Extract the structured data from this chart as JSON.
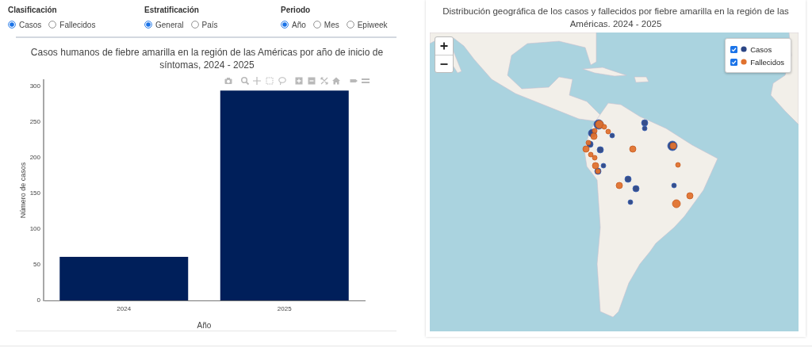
{
  "chart_data": [
    {
      "type": "other",
      "title": "Clasificación",
      "categories": [
        "Casos",
        "Fallecidos"
      ]
    },
    {
      "type": "other",
      "title": "Estratificación",
      "categories": [
        "General",
        "País"
      ]
    },
    {
      "type": "other",
      "title": "Periodo",
      "categories": [
        "Año",
        "Mes",
        "Epiweek"
      ]
    },
    {
      "type": "bar",
      "title": "Casos humanos de fiebre amarilla en la región de las Américas por año de inicio de síntomas, 2024 - 2025",
      "categories": [
        "2024",
        "2025"
      ],
      "values": [
        61,
        294
      ],
      "color": "#001f5a",
      "xlabel": "Año",
      "ylabel": "Número de casos",
      "ylim": [
        0,
        309
      ],
      "yticks": [
        0,
        50,
        100,
        150,
        200,
        250,
        300
      ]
    },
    {
      "type": "other",
      "title": "Distribución geográfica de los casos y fallecidos por fiebre amarilla en la región de las Américas. 2024 - 2025",
      "series": [
        {
          "name": "Casos",
          "color": "#2b4585"
        },
        {
          "name": "Fallecidos",
          "color": "#e0722f"
        }
      ],
      "legend": "top right"
    }
  ]
}
